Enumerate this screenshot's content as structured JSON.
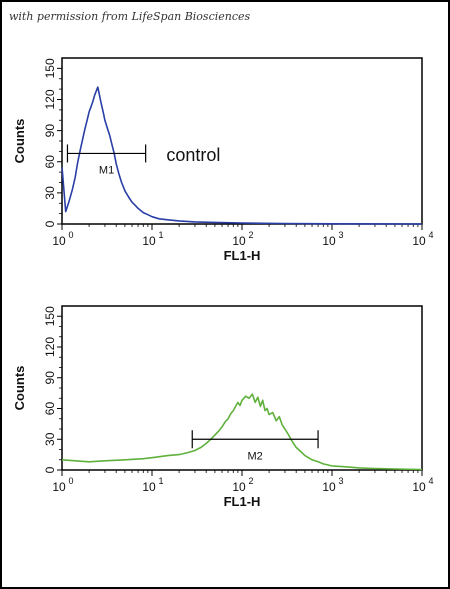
{
  "watermark": "with permission from LifeSpan Biosciences",
  "colors": {
    "control": "#2a3fa6",
    "sample": "#5fb13c",
    "axis": "#000000"
  },
  "chart_data": [
    {
      "type": "line",
      "xlabel": "FL1-H",
      "ylabel": "Counts",
      "xscale": "log",
      "xlim": [
        1,
        10000
      ],
      "ylim": [
        0,
        160
      ],
      "ytick_labels": [
        "0",
        "30",
        "60",
        "90",
        "120",
        "150"
      ],
      "ytick_values": [
        0,
        30,
        60,
        90,
        120,
        150
      ],
      "xtick_values": [
        1,
        10,
        100,
        1000,
        10000
      ],
      "xtick_base": [
        "10",
        "10",
        "10",
        "10",
        "10"
      ],
      "xtick_exp": [
        "0",
        "1",
        "2",
        "3",
        "4"
      ],
      "annotation": "control",
      "gate": {
        "label": "M1",
        "x_start": 1.15,
        "x_end": 8.5,
        "y": 68
      },
      "series": [
        {
          "color": "#2a3fa6",
          "x": [
            1.0,
            1.1,
            1.2,
            1.3,
            1.4,
            1.5,
            1.6,
            1.7,
            1.8,
            1.9,
            2.0,
            2.1,
            2.2,
            2.3,
            2.4,
            2.5,
            2.6,
            2.7,
            2.8,
            2.9,
            3.0,
            3.2,
            3.4,
            3.6,
            3.8,
            4.0,
            4.3,
            4.6,
            5.0,
            5.5,
            6.0,
            6.5,
            7.0,
            8.0,
            9.0,
            10,
            12,
            15,
            20,
            30,
            50,
            100,
            300,
            1000,
            10000
          ],
          "y": [
            55,
            12,
            22,
            33,
            45,
            60,
            72,
            82,
            92,
            100,
            108,
            113,
            118,
            124,
            128,
            132,
            125,
            118,
            112,
            106,
            100,
            92,
            85,
            76,
            68,
            58,
            48,
            40,
            32,
            26,
            21,
            18,
            15,
            11,
            9,
            7,
            5,
            4,
            3,
            2,
            1.5,
            1,
            0.5,
            0.2,
            0
          ]
        }
      ]
    },
    {
      "type": "line",
      "xlabel": "FL1-H",
      "ylabel": "Counts",
      "xscale": "log",
      "xlim": [
        1,
        10000
      ],
      "ylim": [
        0,
        160
      ],
      "ytick_labels": [
        "0",
        "30",
        "60",
        "90",
        "120",
        "150"
      ],
      "ytick_values": [
        0,
        30,
        60,
        90,
        120,
        150
      ],
      "xtick_values": [
        1,
        10,
        100,
        1000,
        10000
      ],
      "xtick_base": [
        "10",
        "10",
        "10",
        "10",
        "10"
      ],
      "xtick_exp": [
        "0",
        "1",
        "2",
        "3",
        "4"
      ],
      "gate": {
        "label": "M2",
        "x_start": 28,
        "x_end": 700,
        "y": 30
      },
      "series": [
        {
          "color": "#5fb13c",
          "x": [
            1.0,
            2,
            3,
            5,
            8,
            10,
            15,
            20,
            25,
            30,
            35,
            40,
            45,
            50,
            55,
            60,
            65,
            70,
            75,
            80,
            85,
            90,
            95,
            100,
            110,
            120,
            130,
            140,
            150,
            160,
            170,
            180,
            190,
            200,
            220,
            240,
            260,
            280,
            300,
            330,
            360,
            400,
            450,
            500,
            600,
            700,
            800,
            1000,
            1500,
            2000,
            3000,
            5000,
            10000
          ],
          "y": [
            10,
            8,
            9,
            10,
            11,
            12,
            14,
            15,
            17,
            19,
            22,
            26,
            30,
            34,
            38,
            42,
            47,
            50,
            55,
            58,
            62,
            66,
            63,
            68,
            72,
            70,
            74,
            66,
            71,
            62,
            68,
            58,
            60,
            54,
            56,
            48,
            52,
            44,
            40,
            34,
            28,
            22,
            18,
            14,
            10,
            8,
            6,
            4,
            3,
            2,
            1.5,
            1,
            0.5
          ]
        }
      ]
    }
  ]
}
